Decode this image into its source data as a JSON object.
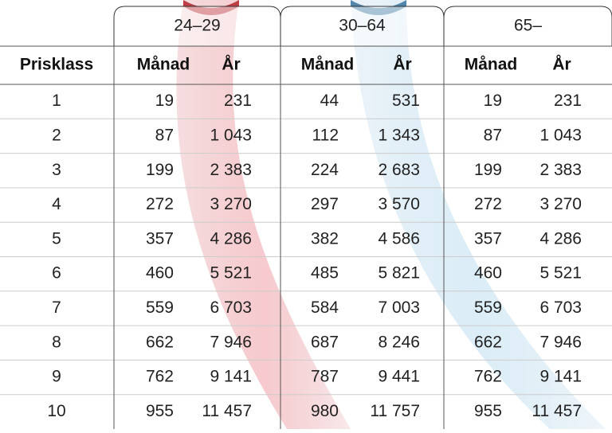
{
  "table": {
    "groups": [
      "24–29",
      "30–64",
      "65–"
    ],
    "header": [
      "Prisklass",
      "Månad",
      "År",
      "Månad",
      "År",
      "Månad",
      "År"
    ],
    "rows": [
      [
        "1",
        "19",
        "231",
        "44",
        "531",
        "19",
        "231"
      ],
      [
        "2",
        "87",
        "1 043",
        "112",
        "1 343",
        "87",
        "1 043"
      ],
      [
        "3",
        "199",
        "2 383",
        "224",
        "2 683",
        "199",
        "2 383"
      ],
      [
        "4",
        "272",
        "3 270",
        "297",
        "3 570",
        "272",
        "3 270"
      ],
      [
        "5",
        "357",
        "4 286",
        "382",
        "4 586",
        "357",
        "4 286"
      ],
      [
        "6",
        "460",
        "5 521",
        "485",
        "5 821",
        "460",
        "5 521"
      ],
      [
        "7",
        "559",
        "6 703",
        "584",
        "7 003",
        "559",
        "6 703"
      ],
      [
        "8",
        "662",
        "7 946",
        "687",
        "8 246",
        "662",
        "7 946"
      ],
      [
        "9",
        "762",
        "9 141",
        "787",
        "9 441",
        "762",
        "9 141"
      ],
      [
        "10",
        "955",
        "11 457",
        "980",
        "11 757",
        "955",
        "11 457"
      ]
    ]
  }
}
